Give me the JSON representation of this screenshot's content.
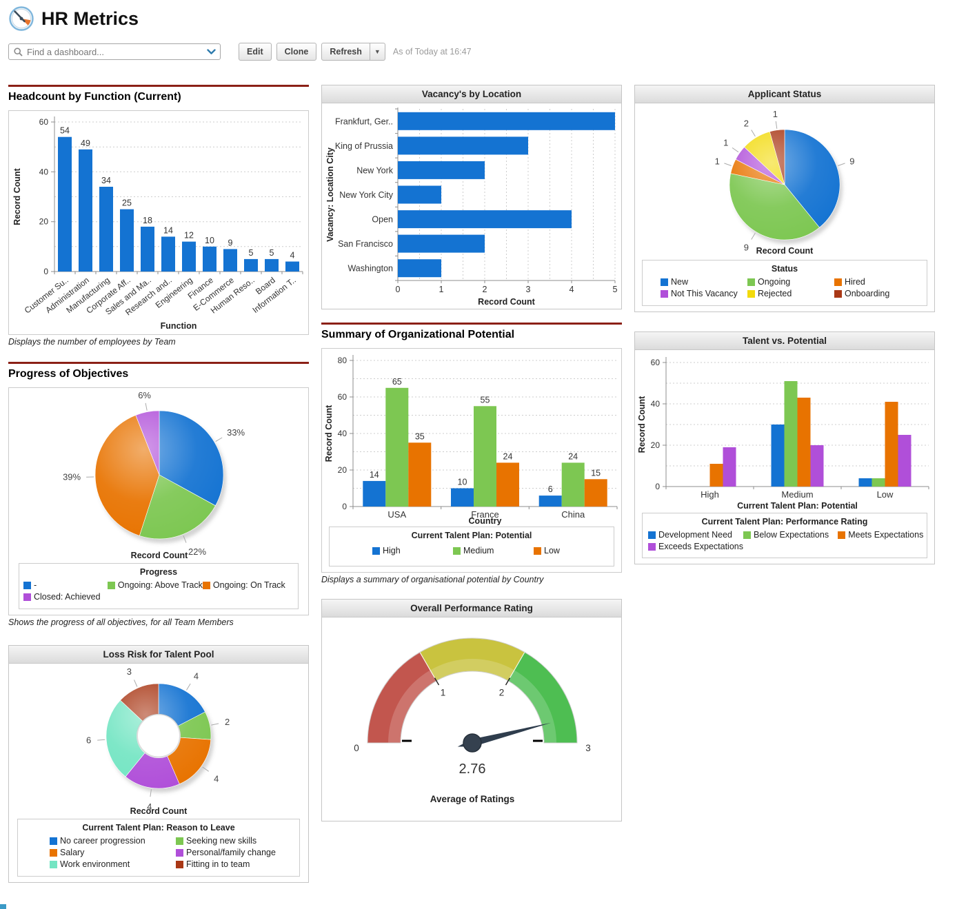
{
  "header": {
    "title": "HR Metrics"
  },
  "toolbar": {
    "search_placeholder": "Find a dashboard...",
    "edit_label": "Edit",
    "clone_label": "Clone",
    "refresh_label": "Refresh",
    "as_of_text": "As of Today at 16:47"
  },
  "colors": {
    "section_rule": "#8B2016",
    "bar_blue": "#1473D2",
    "green": "#7DC752",
    "orange": "#E87300",
    "purple": "#B04FD9",
    "yellow": "#F2DA0C",
    "brick": "#A93816",
    "teal": "#74E5C3",
    "gauge_red": "#C2564E",
    "gauge_yellow": "#C9C33F",
    "gauge_green": "#4EBE52",
    "footer_sliver": "#3B9AC6"
  },
  "chart_data": [
    {
      "id": "headcount",
      "type": "bar",
      "title": "Headcount by Function (Current)",
      "categories": [
        "Customer Su..",
        "Administration",
        "Manufacturing",
        "Corporate Aff..",
        "Sales and Ma..",
        "Research and..",
        "Engineering",
        "Finance",
        "E-Commerce",
        "Human Reso..",
        "Board",
        "Information T.."
      ],
      "values": [
        54,
        49,
        34,
        25,
        18,
        14,
        12,
        10,
        9,
        5,
        5,
        4
      ],
      "bar_color": "#1473D2",
      "xlabel": "Function",
      "ylabel": "Record Count",
      "ylim": [
        0,
        60
      ],
      "yticks": [
        0,
        20,
        40,
        60
      ],
      "grid_step": 10,
      "grid": "dotted horizontal",
      "value_labels": true,
      "caption": "Displays the number of employees by Team"
    },
    {
      "id": "vacancy",
      "type": "bar",
      "orientation": "horizontal",
      "title": "Vacancy's by Location",
      "categories": [
        "Frankfurt, Ger..",
        "King of Prussia",
        "New York",
        "New York City",
        "Open",
        "San Francisco",
        "Washington"
      ],
      "values": [
        5,
        3,
        2,
        1,
        4,
        2,
        1
      ],
      "bar_color": "#1473D2",
      "xlabel": "Record Count",
      "ylabel": "Vacancy: Location City",
      "xlim": [
        0,
        5
      ],
      "xticks": [
        0,
        1,
        2,
        3,
        4,
        5
      ],
      "grid_step": 0.5,
      "grid": "dotted vertical"
    },
    {
      "id": "applicant-status",
      "type": "pie",
      "title": "Applicant Status",
      "center_label": "Record Count",
      "legend_title": "Status",
      "legend_position": "bottom",
      "slices": [
        {
          "label": "New",
          "value": 9,
          "color": "#1473D2",
          "callout": "9"
        },
        {
          "label": "Ongoing",
          "value": 9,
          "color": "#7DC752",
          "callout": "9"
        },
        {
          "label": "Hired",
          "value": 1,
          "color": "#E87300",
          "callout": "1"
        },
        {
          "label": "Not This Vacancy",
          "value": 1,
          "color": "#B04FD9",
          "callout": "1"
        },
        {
          "label": "Rejected",
          "value": 2,
          "color": "#F2DA0C",
          "callout": "2"
        },
        {
          "label": "Onboarding",
          "value": 1,
          "color": "#A93816",
          "callout": "1"
        }
      ]
    },
    {
      "id": "progress",
      "type": "pie",
      "title": "Progress of Objectives",
      "center_label": "Record Count",
      "legend_title": "Progress",
      "legend_position": "bottom",
      "slices": [
        {
          "label": "-",
          "value": 33,
          "color": "#1473D2",
          "callout": "33%"
        },
        {
          "label": "Ongoing: Above Track",
          "value": 22,
          "color": "#7DC752",
          "callout": "22%"
        },
        {
          "label": "Ongoing: On Track",
          "value": 39,
          "color": "#E87300",
          "callout": "39%"
        },
        {
          "label": "Closed: Achieved",
          "value": 6,
          "color": "#B04FD9",
          "callout": "6%"
        }
      ],
      "caption": "Shows the progress of all objectives, for all Team Members"
    },
    {
      "id": "summary",
      "type": "bar",
      "grouped": true,
      "title": "Summary of Organizational Potential",
      "categories": [
        "USA",
        "France",
        "China"
      ],
      "series": [
        {
          "name": "High",
          "color": "#1473D2",
          "values": [
            14,
            10,
            6
          ]
        },
        {
          "name": "Medium",
          "color": "#7DC752",
          "values": [
            65,
            55,
            24
          ]
        },
        {
          "name": "Low",
          "color": "#E87300",
          "values": [
            35,
            24,
            15
          ]
        }
      ],
      "xlabel": "Country",
      "ylabel": "Record Count",
      "ylim": [
        0,
        80
      ],
      "yticks": [
        0,
        20,
        40,
        60,
        80
      ],
      "grid_step": 10,
      "value_labels": true,
      "legend_title": "Current Talent Plan: Potential",
      "caption": "Displays a summary of organisational potential by Country"
    },
    {
      "id": "talent-potential",
      "type": "bar",
      "grouped": true,
      "title": "Talent vs. Potential",
      "categories": [
        "High",
        "Medium",
        "Low"
      ],
      "series": [
        {
          "name": "Development Need",
          "color": "#1473D2",
          "values": [
            0,
            30,
            4
          ]
        },
        {
          "name": "Below Expectations",
          "color": "#7DC752",
          "values": [
            0,
            51,
            4
          ]
        },
        {
          "name": "Meets Expectations",
          "color": "#E87300",
          "values": [
            11,
            43,
            41
          ]
        },
        {
          "name": "Exceeds Expectations",
          "color": "#B04FD9",
          "values": [
            19,
            20,
            25
          ]
        }
      ],
      "xlabel": "Current Talent Plan: Potential",
      "ylabel": "Record Count",
      "ylim": [
        0,
        60
      ],
      "yticks": [
        0,
        20,
        40,
        60
      ],
      "grid_step": 10,
      "value_labels": false,
      "legend_title": "Current Talent Plan: Performance Rating"
    },
    {
      "id": "loss-risk",
      "type": "pie",
      "subtype": "donut",
      "title": "Loss Risk for Talent Pool",
      "center_label": "Record Count",
      "legend_title": "Current Talent Plan: Reason to Leave",
      "legend_position": "bottom",
      "slices": [
        {
          "label": "No career progression",
          "value": 4,
          "color": "#1473D2",
          "callout": "4"
        },
        {
          "label": "Seeking new skills",
          "value": 2,
          "color": "#7DC752",
          "callout": "2"
        },
        {
          "label": "Salary",
          "value": 4,
          "color": "#E87300",
          "callout": "4"
        },
        {
          "label": "Personal/family change",
          "value": 4,
          "color": "#B04FD9",
          "callout": "4"
        },
        {
          "label": "Work environment",
          "value": 6,
          "color": "#74E5C3",
          "callout": "6"
        },
        {
          "label": "Fitting in to team",
          "value": 3,
          "color": "#A93816",
          "callout": "3"
        }
      ]
    },
    {
      "id": "gauge",
      "type": "gauge",
      "title": "Overall Performance Rating",
      "value": 2.76,
      "value_label": "2.76",
      "min": 0,
      "max": 3,
      "ticks": [
        0,
        1,
        2,
        3
      ],
      "segments": [
        {
          "from": 0,
          "to": 1,
          "color": "#C2564E"
        },
        {
          "from": 1,
          "to": 2,
          "color": "#C9C33F"
        },
        {
          "from": 2,
          "to": 3,
          "color": "#4EBE52"
        }
      ],
      "caption_label": "Average of Ratings"
    }
  ]
}
